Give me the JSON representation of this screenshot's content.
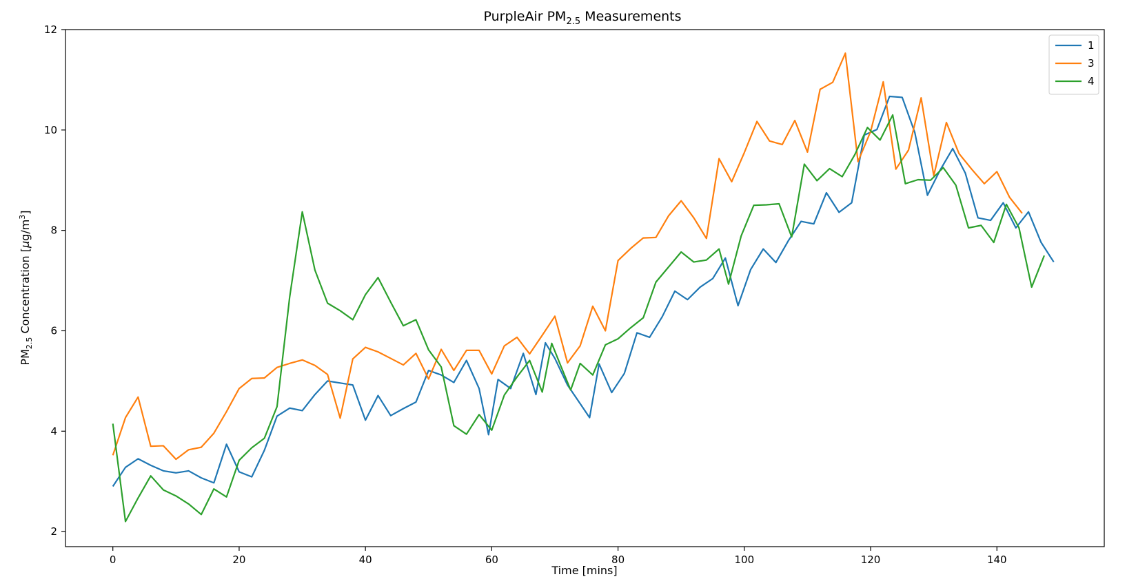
{
  "chart_data": {
    "type": "line",
    "title": "PurpleAir PM",
    "title_sub": "2.5",
    "title_suffix": " Measurements",
    "xlabel": "Time [mins]",
    "ylabel": "PM",
    "ylabel_sub": "2.5",
    "ylabel_suffix": " Concentration [",
    "ylabel_mu": "μ",
    "ylabel_unit": "g/m",
    "ylabel_sup": "3",
    "ylabel_close": "]",
    "xlim": [
      -7.5,
      157
    ],
    "ylim": [
      1.7,
      12
    ],
    "xticks": [
      0,
      20,
      40,
      60,
      80,
      100,
      120,
      140
    ],
    "yticks": [
      2,
      4,
      6,
      8,
      10,
      12
    ],
    "grid": false,
    "legend_position": "top-right",
    "series": [
      {
        "name": "1",
        "color": "#1f77b4",
        "points": [
          [
            0,
            2.9
          ],
          [
            2,
            3.28
          ],
          [
            4,
            3.45
          ],
          [
            6,
            3.32
          ],
          [
            8,
            3.21
          ],
          [
            10,
            3.17
          ],
          [
            12,
            3.21
          ],
          [
            14,
            3.07
          ],
          [
            16,
            2.97
          ],
          [
            18,
            3.74
          ],
          [
            20,
            3.19
          ],
          [
            22,
            3.09
          ],
          [
            24,
            3.62
          ],
          [
            26,
            4.3
          ],
          [
            28,
            4.46
          ],
          [
            30,
            4.41
          ],
          [
            32,
            4.73
          ],
          [
            34,
            5.0
          ],
          [
            36,
            4.96
          ],
          [
            38,
            4.92
          ],
          [
            40,
            4.22
          ],
          [
            42,
            4.71
          ],
          [
            44,
            4.31
          ],
          [
            46,
            4.45
          ],
          [
            48,
            4.58
          ],
          [
            50,
            5.21
          ],
          [
            52,
            5.12
          ],
          [
            54,
            4.97
          ],
          [
            56,
            5.41
          ],
          [
            58,
            4.85
          ],
          [
            59.5,
            3.93
          ],
          [
            61,
            5.03
          ],
          [
            63,
            4.85
          ],
          [
            65,
            5.55
          ],
          [
            67,
            4.73
          ],
          [
            68.5,
            5.76
          ],
          [
            70,
            5.45
          ],
          [
            72,
            4.92
          ],
          [
            74,
            4.55
          ],
          [
            75.5,
            4.27
          ],
          [
            77,
            5.34
          ],
          [
            79,
            4.77
          ],
          [
            81,
            5.15
          ],
          [
            83,
            5.96
          ],
          [
            85,
            5.87
          ],
          [
            87,
            6.28
          ],
          [
            89,
            6.79
          ],
          [
            91,
            6.62
          ],
          [
            93,
            6.87
          ],
          [
            95,
            7.04
          ],
          [
            97,
            7.45
          ],
          [
            99,
            6.5
          ],
          [
            101,
            7.22
          ],
          [
            103,
            7.63
          ],
          [
            105,
            7.36
          ],
          [
            107,
            7.8
          ],
          [
            109,
            8.18
          ],
          [
            111,
            8.13
          ],
          [
            113,
            8.75
          ],
          [
            115,
            8.36
          ],
          [
            117,
            8.55
          ],
          [
            119,
            9.9
          ],
          [
            121,
            10.01
          ],
          [
            123,
            10.67
          ],
          [
            125,
            10.65
          ],
          [
            127,
            9.95
          ],
          [
            129,
            8.7
          ],
          [
            131,
            9.2
          ],
          [
            133,
            9.63
          ],
          [
            135,
            9.14
          ],
          [
            137,
            8.25
          ],
          [
            139,
            8.2
          ],
          [
            141,
            8.55
          ],
          [
            143,
            8.05
          ],
          [
            145,
            8.37
          ],
          [
            147,
            7.76
          ],
          [
            149,
            7.37
          ]
        ]
      },
      {
        "name": "3",
        "color": "#ff7f0e",
        "points": [
          [
            0,
            3.52
          ],
          [
            2,
            4.27
          ],
          [
            4,
            4.68
          ],
          [
            6,
            3.7
          ],
          [
            8,
            3.71
          ],
          [
            10,
            3.44
          ],
          [
            12,
            3.63
          ],
          [
            14,
            3.68
          ],
          [
            16,
            3.96
          ],
          [
            18,
            4.39
          ],
          [
            20,
            4.85
          ],
          [
            22,
            5.05
          ],
          [
            24,
            5.06
          ],
          [
            26,
            5.27
          ],
          [
            28,
            5.35
          ],
          [
            30,
            5.42
          ],
          [
            32,
            5.31
          ],
          [
            34,
            5.13
          ],
          [
            36,
            4.26
          ],
          [
            38,
            5.44
          ],
          [
            40,
            5.67
          ],
          [
            42,
            5.58
          ],
          [
            44,
            5.45
          ],
          [
            46,
            5.32
          ],
          [
            48,
            5.55
          ],
          [
            50,
            5.04
          ],
          [
            52,
            5.63
          ],
          [
            54,
            5.21
          ],
          [
            56,
            5.61
          ],
          [
            58,
            5.61
          ],
          [
            60,
            5.14
          ],
          [
            62,
            5.7
          ],
          [
            64,
            5.87
          ],
          [
            66,
            5.54
          ],
          [
            68,
            5.91
          ],
          [
            70,
            6.29
          ],
          [
            72,
            5.36
          ],
          [
            74,
            5.7
          ],
          [
            76,
            6.49
          ],
          [
            78,
            6.0
          ],
          [
            80,
            7.4
          ],
          [
            82,
            7.64
          ],
          [
            84,
            7.85
          ],
          [
            86,
            7.86
          ],
          [
            88,
            8.29
          ],
          [
            90,
            8.59
          ],
          [
            92,
            8.25
          ],
          [
            94,
            7.84
          ],
          [
            96,
            9.43
          ],
          [
            98,
            8.97
          ],
          [
            100,
            9.55
          ],
          [
            102,
            10.17
          ],
          [
            104,
            9.78
          ],
          [
            106,
            9.71
          ],
          [
            108,
            10.19
          ],
          [
            110,
            9.56
          ],
          [
            112,
            10.81
          ],
          [
            114,
            10.95
          ],
          [
            116,
            11.53
          ],
          [
            118,
            9.37
          ],
          [
            120,
            9.97
          ],
          [
            122,
            10.96
          ],
          [
            124,
            9.22
          ],
          [
            126,
            9.6
          ],
          [
            128,
            10.64
          ],
          [
            130,
            9.09
          ],
          [
            132,
            10.15
          ],
          [
            134,
            9.53
          ],
          [
            136,
            9.22
          ],
          [
            138,
            8.93
          ],
          [
            140,
            9.17
          ],
          [
            142,
            8.66
          ],
          [
            144,
            8.34
          ]
        ]
      },
      {
        "name": "4",
        "color": "#2ca02c",
        "points": [
          [
            0,
            4.15
          ],
          [
            2,
            2.2
          ],
          [
            4,
            2.67
          ],
          [
            6,
            3.11
          ],
          [
            8,
            2.83
          ],
          [
            10,
            2.71
          ],
          [
            12,
            2.55
          ],
          [
            14,
            2.34
          ],
          [
            16,
            2.85
          ],
          [
            18,
            2.69
          ],
          [
            20,
            3.42
          ],
          [
            22,
            3.67
          ],
          [
            24,
            3.86
          ],
          [
            26,
            4.49
          ],
          [
            28,
            6.67
          ],
          [
            30,
            8.37
          ],
          [
            32,
            7.21
          ],
          [
            34,
            6.55
          ],
          [
            36,
            6.4
          ],
          [
            38,
            6.22
          ],
          [
            40,
            6.72
          ],
          [
            42,
            7.06
          ],
          [
            44,
            6.57
          ],
          [
            46,
            6.1
          ],
          [
            48,
            6.22
          ],
          [
            50,
            5.62
          ],
          [
            52,
            5.28
          ],
          [
            54,
            4.11
          ],
          [
            56,
            3.94
          ],
          [
            58,
            4.33
          ],
          [
            60,
            4.02
          ],
          [
            62,
            4.72
          ],
          [
            64,
            5.08
          ],
          [
            66,
            5.41
          ],
          [
            68,
            4.78
          ],
          [
            69.5,
            5.75
          ],
          [
            71,
            5.28
          ],
          [
            72.5,
            4.82
          ],
          [
            74,
            5.35
          ],
          [
            76,
            5.12
          ],
          [
            78,
            5.72
          ],
          [
            80,
            5.84
          ],
          [
            82,
            6.06
          ],
          [
            84,
            6.26
          ],
          [
            86,
            6.97
          ],
          [
            88,
            7.27
          ],
          [
            90,
            7.57
          ],
          [
            92,
            7.37
          ],
          [
            94,
            7.41
          ],
          [
            96,
            7.63
          ],
          [
            97.5,
            6.93
          ],
          [
            99.5,
            7.89
          ],
          [
            101.5,
            8.5
          ],
          [
            103.5,
            8.51
          ],
          [
            105.5,
            8.53
          ],
          [
            107.5,
            7.87
          ],
          [
            109.5,
            9.32
          ],
          [
            111.5,
            8.99
          ],
          [
            113.5,
            9.23
          ],
          [
            115.5,
            9.07
          ],
          [
            117.5,
            9.51
          ],
          [
            119.5,
            10.05
          ],
          [
            121.5,
            9.8
          ],
          [
            123.5,
            10.3
          ],
          [
            125.5,
            8.93
          ],
          [
            127.5,
            9.01
          ],
          [
            129.5,
            9.0
          ],
          [
            131.5,
            9.25
          ],
          [
            133.5,
            8.9
          ],
          [
            135.5,
            8.05
          ],
          [
            137.5,
            8.1
          ],
          [
            139.5,
            7.76
          ],
          [
            141.5,
            8.52
          ],
          [
            143.5,
            8.05
          ],
          [
            145.5,
            6.87
          ],
          [
            147.5,
            7.5
          ]
        ]
      }
    ]
  }
}
